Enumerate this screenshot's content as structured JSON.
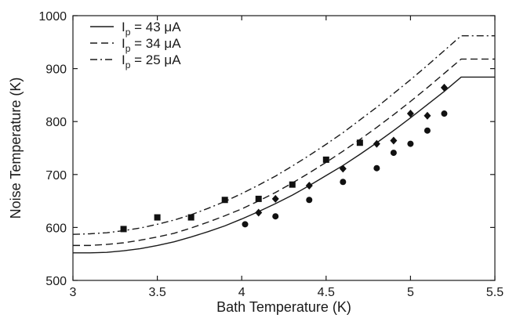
{
  "chart_data": {
    "type": "line",
    "title": "",
    "xlabel": "Bath Temperature (K)",
    "ylabel": "Noise Temperature (K)",
    "xlim": [
      3,
      5.5
    ],
    "ylim": [
      500,
      1000
    ],
    "xticks": [
      3,
      3.5,
      4,
      4.5,
      5,
      5.5
    ],
    "xtick_labels": [
      "3",
      "3.5",
      "4",
      "4.5",
      "5",
      "5.5"
    ],
    "yticks": [
      500,
      600,
      700,
      800,
      900,
      1000
    ],
    "ytick_labels": [
      "500",
      "600",
      "700",
      "800",
      "900",
      "1000"
    ],
    "grid": false,
    "legend_position": "top-left",
    "series": [
      {
        "name": "I_p = 43 μA",
        "legend_main": "I",
        "legend_sub": "p",
        "legend_rest": " = 43 μA",
        "line_style": "solid",
        "curve_x": [
          3.0,
          3.1,
          3.2,
          3.3,
          3.4,
          3.5,
          3.6,
          3.7,
          3.8,
          3.9,
          4.0,
          4.1,
          4.2,
          4.3,
          4.4,
          4.5,
          4.6,
          4.7,
          4.8,
          4.9,
          5.0,
          5.1,
          5.2,
          5.3,
          5.4,
          5.5
        ],
        "curve_y": [
          552,
          552,
          553,
          556,
          560,
          566,
          573,
          582,
          592,
          603,
          616,
          630,
          645,
          661,
          679,
          698,
          717,
          738,
          760,
          783,
          807,
          832,
          857,
          884,
          884,
          884
        ],
        "marker": "circle",
        "points_x": [
          4.02,
          4.2,
          4.4,
          4.6,
          4.8,
          4.9,
          5.0,
          5.1,
          5.2
        ],
        "points_y": [
          606,
          621,
          652,
          686,
          712,
          741,
          758,
          783,
          815
        ]
      },
      {
        "name": "I_p = 34 μA",
        "legend_main": "I",
        "legend_sub": "p",
        "legend_rest": " = 34 μA",
        "line_style": "dashed",
        "curve_x": [
          3.0,
          3.1,
          3.2,
          3.3,
          3.4,
          3.5,
          3.6,
          3.7,
          3.8,
          3.9,
          4.0,
          4.1,
          4.2,
          4.3,
          4.4,
          4.5,
          4.6,
          4.7,
          4.8,
          4.9,
          5.0,
          5.1,
          5.2,
          5.3,
          5.4,
          5.5
        ],
        "curve_y": [
          566,
          566,
          568,
          571,
          576,
          582,
          589,
          599,
          610,
          622,
          635,
          650,
          666,
          684,
          703,
          723,
          744,
          766,
          789,
          813,
          838,
          864,
          891,
          918,
          918,
          918
        ],
        "marker": "diamond",
        "points_x": [
          4.1,
          4.2,
          4.4,
          4.6,
          4.8,
          4.9,
          5.0,
          5.1,
          5.2
        ],
        "points_y": [
          628,
          654,
          679,
          711,
          758,
          764,
          815,
          811,
          864
        ]
      },
      {
        "name": "I_p = 25 μA",
        "legend_main": "I",
        "legend_sub": "p",
        "legend_rest": " = 25 μA",
        "line_style": "dash-dot",
        "curve_x": [
          3.0,
          3.1,
          3.2,
          3.3,
          3.4,
          3.5,
          3.6,
          3.7,
          3.8,
          3.9,
          4.0,
          4.1,
          4.2,
          4.3,
          4.4,
          4.5,
          4.6,
          4.7,
          4.8,
          4.9,
          5.0,
          5.1,
          5.2,
          5.3,
          5.4,
          5.5
        ],
        "curve_y": [
          587,
          588,
          590,
          594,
          599,
          606,
          614,
          624,
          636,
          649,
          664,
          680,
          697,
          716,
          736,
          757,
          779,
          803,
          827,
          853,
          879,
          906,
          934,
          962,
          962,
          962
        ],
        "marker": "square",
        "points_x": [
          3.3,
          3.5,
          3.7,
          3.9,
          4.1,
          4.3,
          4.5,
          4.7
        ],
        "points_y": [
          597,
          619,
          619,
          652,
          654,
          681,
          728,
          760
        ]
      }
    ]
  }
}
